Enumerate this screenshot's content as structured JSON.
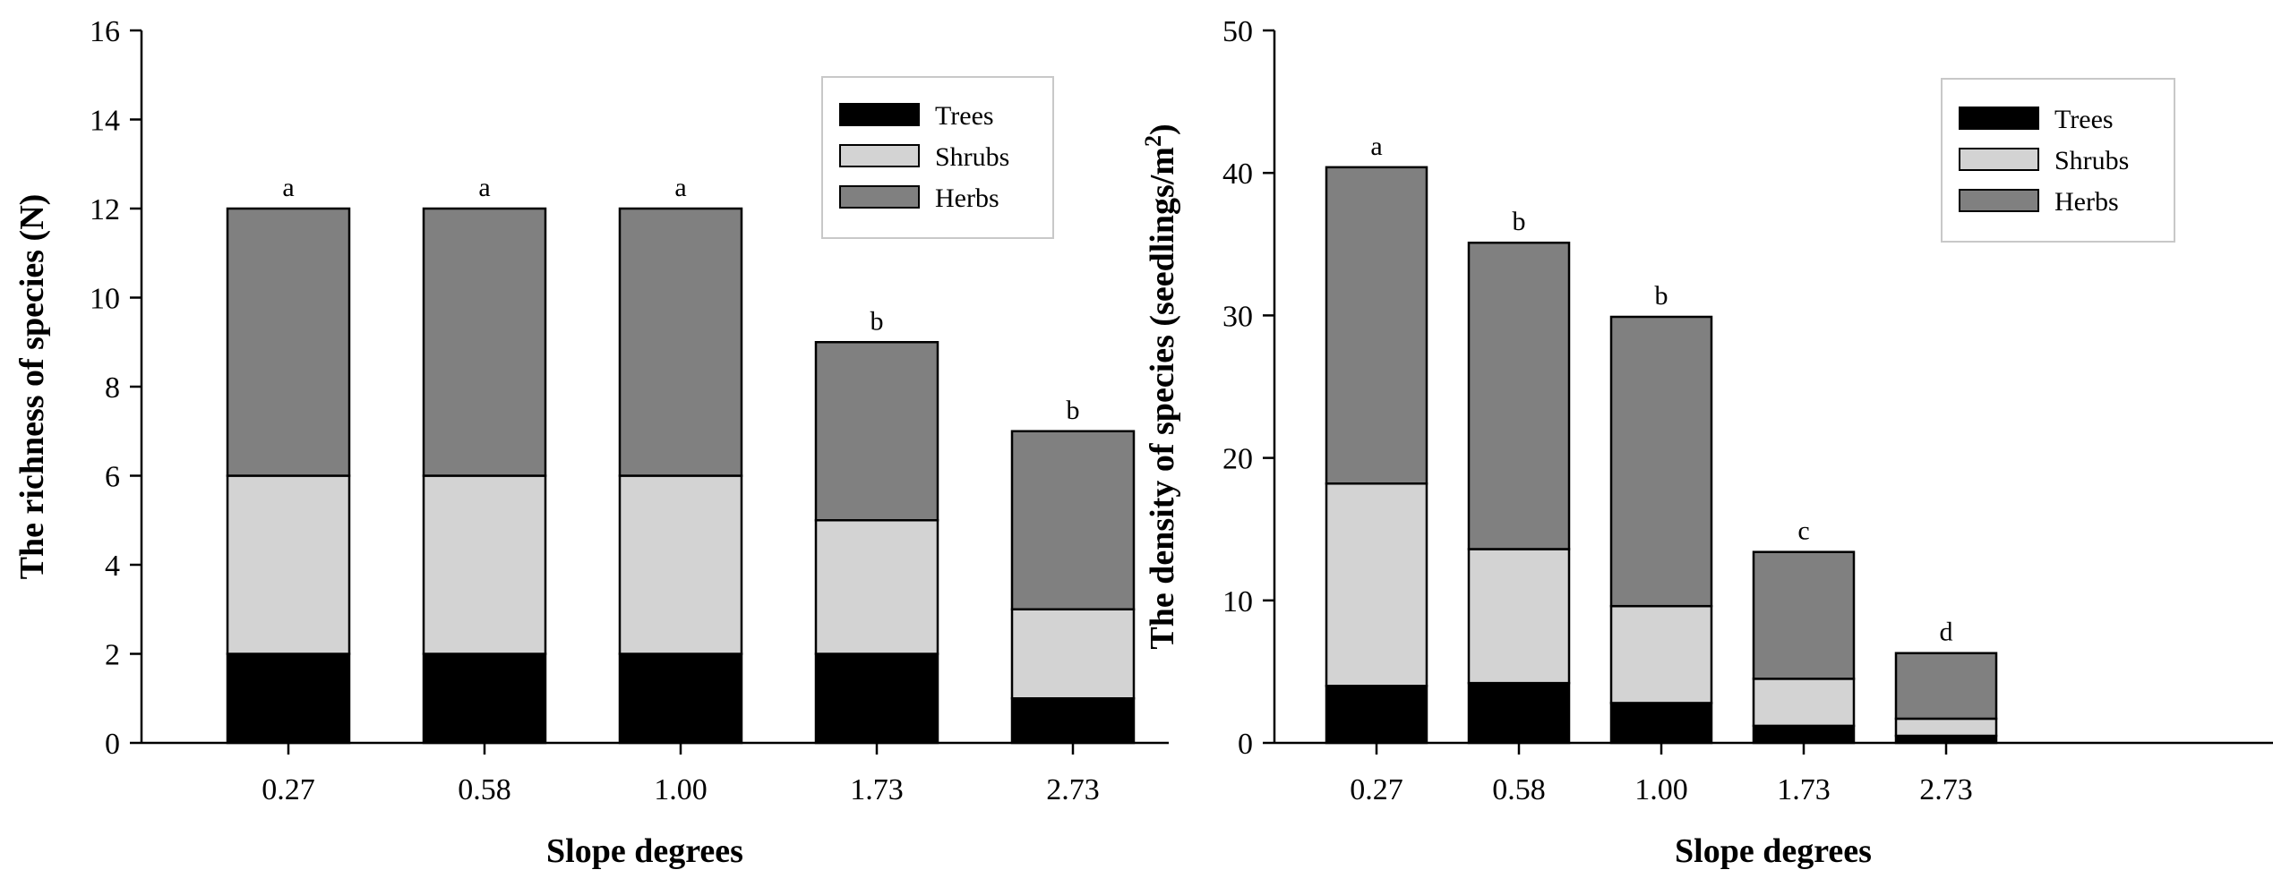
{
  "colors": {
    "Trees": "#000000",
    "Shrubs": "#d3d3d3",
    "Herbs": "#808080"
  },
  "chart_data": [
    {
      "type": "bar",
      "stacked": true,
      "title": "",
      "xlabel": "Slope degrees",
      "ylabel": "The richness of species (N)",
      "ylim": [
        0,
        16
      ],
      "yticks": [
        "0",
        "2",
        "4",
        "6",
        "8",
        "10",
        "12",
        "14",
        "16"
      ],
      "categories": [
        "0.27",
        "0.58",
        "1.00",
        "1.73",
        "2.73"
      ],
      "series": [
        {
          "name": "Trees",
          "values": [
            2,
            2,
            2,
            2,
            1
          ]
        },
        {
          "name": "Shrubs",
          "values": [
            4,
            4,
            4,
            3,
            2
          ]
        },
        {
          "name": "Herbs",
          "values": [
            6,
            6,
            6,
            4,
            4
          ]
        }
      ],
      "annotations": [
        "a",
        "a",
        "a",
        "b",
        "b"
      ],
      "legend": [
        "Trees",
        "Shrubs",
        "Herbs"
      ],
      "legend_position": "top-right"
    },
    {
      "type": "bar",
      "stacked": true,
      "title": "",
      "xlabel": "Slope degrees",
      "ylabel": "The density of species (seedlings/m",
      "ylabel_superscript": "2",
      "ylabel_close": ")",
      "ylim": [
        0,
        50
      ],
      "yticks": [
        "0",
        "10",
        "20",
        "30",
        "40",
        "50"
      ],
      "categories": [
        "0.27",
        "0.58",
        "1.00",
        "1.73",
        "2.73"
      ],
      "series": [
        {
          "name": "Trees",
          "values": [
            4.0,
            4.2,
            2.8,
            1.2,
            0.5
          ]
        },
        {
          "name": "Shrubs",
          "values": [
            14.2,
            9.4,
            6.8,
            3.3,
            1.2
          ]
        },
        {
          "name": "Herbs",
          "values": [
            22.2,
            21.5,
            20.3,
            8.9,
            4.6
          ]
        }
      ],
      "annotations": [
        "a",
        "b",
        "b",
        "c",
        "d"
      ],
      "legend": [
        "Trees",
        "Shrubs",
        "Herbs"
      ],
      "legend_position": "top-right"
    }
  ]
}
